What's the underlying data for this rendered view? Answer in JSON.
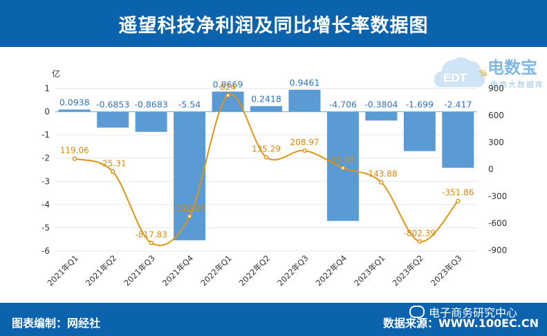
{
  "header": {
    "title": "遥望科技净利润及同比增长率数据图"
  },
  "footer": {
    "editor": "图表编制：网经社",
    "source": "数据来源：WWW.100EC.CN"
  },
  "wechat": {
    "label": "电子商务研究中心"
  },
  "watermark": {
    "brand": "电数宝",
    "sub": "电商大数据库",
    "logo_text": "EDT"
  },
  "colors": {
    "header_bg": "#0b62ad",
    "bar": "#5b9bd5",
    "line": "#e09412",
    "bar_label": "#2e73c0",
    "line_label": "#d88a0b"
  },
  "chart_data": {
    "type": "bar",
    "categories": [
      "2021年Q1",
      "2021年Q2",
      "2021年Q3",
      "2021年Q4",
      "2022年Q1",
      "2022年Q2",
      "2022年Q3",
      "2022年Q4",
      "2023年Q1",
      "2023年Q2",
      "2023年Q3"
    ],
    "series": [
      {
        "type": "bar",
        "axis": "left",
        "values": [
          0.0938,
          -0.6853,
          -0.8683,
          -5.54,
          0.8669,
          0.2418,
          0.9461,
          -4.706,
          -0.3804,
          -1.699,
          -2.417
        ],
        "labels": [
          "0.0938",
          "-0.6853",
          "-0.8683",
          "-5.54",
          "0.8669",
          "0.2418",
          "0.9461",
          "-4.706",
          "-0.3804",
          "-1.699",
          "-2.417"
        ]
      },
      {
        "type": "line",
        "axis": "right",
        "values": [
          119.06,
          -25.31,
          -817.83,
          -522.86,
          824,
          135.29,
          208.97,
          15.06,
          -143.88,
          -802.39,
          -351.86
        ],
        "labels": [
          "119.06",
          "-25.31",
          "-817.83",
          "-522.86",
          "824",
          "135.29",
          "208.97",
          "15.06",
          "-143.88",
          "-802.39",
          "-351.86"
        ]
      }
    ],
    "ylabel": "亿",
    "y2label": "%",
    "ylim": [
      -6,
      1
    ],
    "yticks": [
      "1",
      "0",
      "-1",
      "-2",
      "-3",
      "-4",
      "-5",
      "-6"
    ],
    "y2lim": [
      -900,
      900
    ],
    "y2ticks": [
      "900",
      "600",
      "300",
      "0",
      "-300",
      "-600",
      "-900"
    ],
    "grid": true
  }
}
